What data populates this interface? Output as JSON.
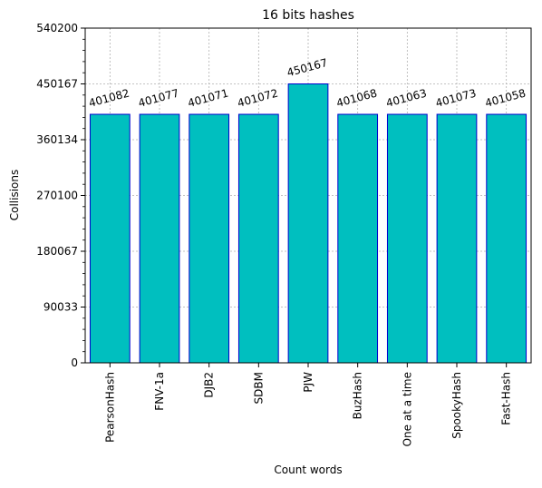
{
  "chart_data": {
    "type": "bar",
    "title": "16 bits hashes",
    "xlabel": "Count words",
    "ylabel": "Collisions",
    "categories": [
      "PearsonHash",
      "FNV-1a",
      "DJB2",
      "SDBM",
      "PJW",
      "BuzHash",
      "One at a time",
      "SpookyHash",
      "Fast-Hash"
    ],
    "values": [
      401082,
      401077,
      401071,
      401072,
      450167,
      401068,
      401063,
      401073,
      401058
    ],
    "data_labels": [
      "401082",
      "401077",
      "401071",
      "401072",
      "450167",
      "401068",
      "401063",
      "401073",
      "401058"
    ],
    "ylim": [
      0,
      540200
    ],
    "yticks": [
      0,
      90033,
      180067,
      270100,
      360134,
      450167,
      540200
    ],
    "ytick_labels": [
      "0",
      "90033",
      "180067",
      "270100",
      "360134",
      "450167",
      "540200"
    ],
    "grid": true,
    "bar_color": "#00bfbf",
    "edge_color": "#0000cd"
  }
}
